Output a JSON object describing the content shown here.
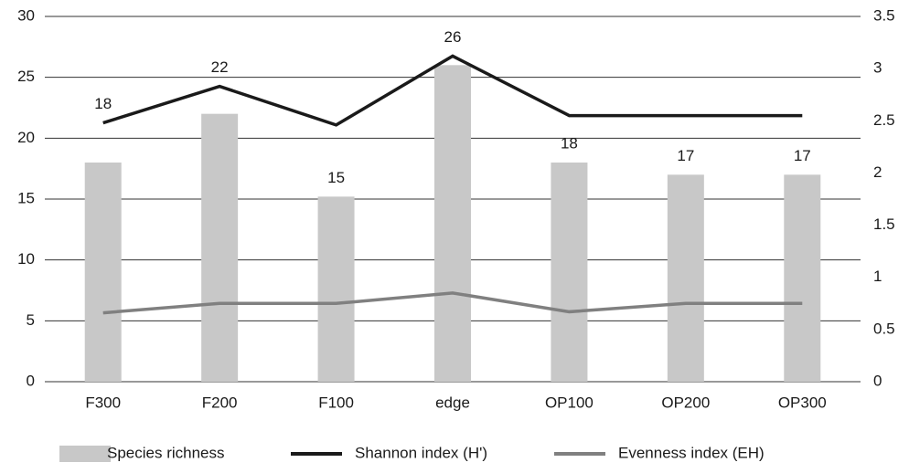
{
  "chart_data": {
    "type": "bar_line",
    "categories": [
      "F300",
      "F200",
      "F100",
      "edge",
      "OP100",
      "OP200",
      "OP300"
    ],
    "series": [
      {
        "name": "Species richness",
        "type": "bar",
        "color": "#c8c8c8",
        "values": [
          18,
          22,
          15.2,
          26,
          18,
          17,
          17
        ],
        "value_labels": [
          "18",
          "22",
          "15",
          "26",
          "18",
          "17",
          "17"
        ]
      },
      {
        "name": "Shannon index (H')",
        "type": "line",
        "axis": "y2",
        "color": "#1a1a1a",
        "values": [
          2.48,
          2.83,
          2.46,
          3.12,
          2.55,
          2.55,
          2.55
        ]
      },
      {
        "name": "Evenness index (EH)",
        "type": "line",
        "axis": "y2",
        "color": "#808080",
        "values": [
          0.66,
          0.75,
          0.75,
          0.85,
          0.67,
          0.75,
          0.75
        ]
      }
    ],
    "ylim": [
      0,
      30
    ],
    "yticks": [
      0,
      5,
      10,
      15,
      20,
      25,
      30
    ],
    "y2lim": [
      0,
      3.5
    ],
    "y2ticks": [
      0,
      0.5,
      1,
      1.5,
      2,
      2.5,
      3,
      3.5
    ],
    "grid": true
  }
}
